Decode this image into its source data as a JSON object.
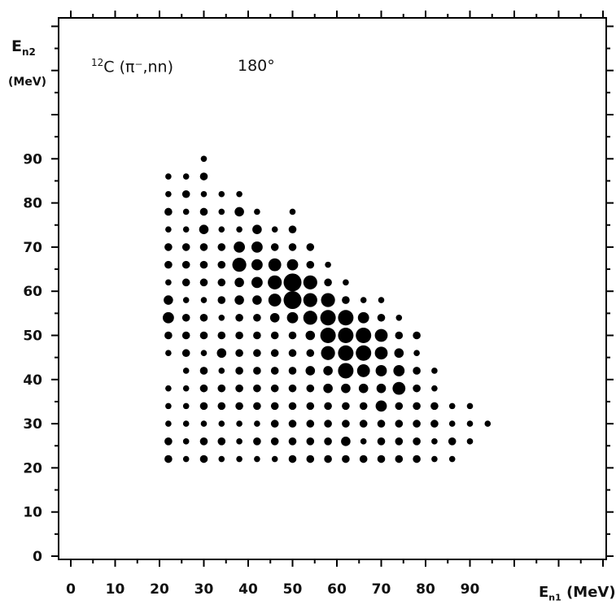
{
  "header": {
    "ylabel_symbol": "E",
    "ylabel_sub": "n2",
    "ylabel_unit": "(MeV)",
    "reaction_mass": "12",
    "reaction_text": "C (π⁻,nn)",
    "angle": "180°",
    "xlabel_symbol": "E",
    "xlabel_sub": "n1",
    "xlabel_unit": "(MeV)"
  },
  "chart_data": {
    "type": "scatter",
    "title": "12C (π⁻,nn) 180°",
    "xlabel": "En1 (MeV)",
    "ylabel": "En2 (MeV)",
    "xlim": [
      -2,
      120
    ],
    "ylim": [
      -2,
      120
    ],
    "xticks": [
      0,
      10,
      20,
      30,
      40,
      50,
      60,
      70,
      80,
      90
    ],
    "yticks": [
      0,
      10,
      20,
      30,
      40,
      50,
      60,
      70,
      80,
      90
    ],
    "grid": false,
    "marker_color": "#000000",
    "size_meaning": "dot area proportional to intensity (relative scale 1-8)",
    "points": [
      [
        30,
        90,
        1
      ],
      [
        22,
        86,
        1
      ],
      [
        26,
        86,
        1
      ],
      [
        30,
        86,
        2
      ],
      [
        22,
        82,
        1
      ],
      [
        26,
        82,
        2
      ],
      [
        30,
        82,
        1
      ],
      [
        34,
        82,
        1
      ],
      [
        38,
        82,
        1
      ],
      [
        22,
        78,
        2
      ],
      [
        26,
        78,
        1
      ],
      [
        30,
        78,
        2
      ],
      [
        34,
        78,
        1
      ],
      [
        38,
        78,
        3
      ],
      [
        42,
        78,
        1
      ],
      [
        50,
        78,
        1
      ],
      [
        22,
        74,
        1
      ],
      [
        26,
        74,
        1
      ],
      [
        30,
        74,
        3
      ],
      [
        34,
        74,
        1
      ],
      [
        38,
        74,
        1
      ],
      [
        42,
        74,
        3
      ],
      [
        46,
        74,
        1
      ],
      [
        50,
        74,
        2
      ],
      [
        22,
        70,
        2
      ],
      [
        26,
        70,
        2
      ],
      [
        30,
        70,
        2
      ],
      [
        34,
        70,
        2
      ],
      [
        38,
        70,
        4
      ],
      [
        42,
        70,
        4
      ],
      [
        46,
        70,
        2
      ],
      [
        50,
        70,
        2
      ],
      [
        54,
        70,
        2
      ],
      [
        22,
        66,
        2
      ],
      [
        26,
        66,
        2
      ],
      [
        30,
        66,
        2
      ],
      [
        34,
        66,
        2
      ],
      [
        38,
        66,
        6
      ],
      [
        42,
        66,
        4
      ],
      [
        46,
        66,
        5
      ],
      [
        50,
        66,
        4
      ],
      [
        54,
        66,
        2
      ],
      [
        58,
        66,
        1
      ],
      [
        22,
        62,
        1
      ],
      [
        26,
        62,
        2
      ],
      [
        30,
        62,
        2
      ],
      [
        34,
        62,
        2
      ],
      [
        38,
        62,
        3
      ],
      [
        42,
        62,
        4
      ],
      [
        46,
        62,
        6
      ],
      [
        50,
        62,
        8
      ],
      [
        54,
        62,
        6
      ],
      [
        58,
        62,
        2
      ],
      [
        62,
        62,
        1
      ],
      [
        22,
        58,
        3
      ],
      [
        26,
        58,
        1
      ],
      [
        30,
        58,
        1
      ],
      [
        34,
        58,
        2
      ],
      [
        38,
        58,
        3
      ],
      [
        42,
        58,
        3
      ],
      [
        46,
        58,
        5
      ],
      [
        50,
        58,
        8
      ],
      [
        54,
        58,
        6
      ],
      [
        58,
        58,
        6
      ],
      [
        62,
        58,
        2
      ],
      [
        66,
        58,
        1
      ],
      [
        70,
        58,
        1
      ],
      [
        22,
        54,
        4
      ],
      [
        26,
        54,
        2
      ],
      [
        30,
        54,
        2
      ],
      [
        34,
        54,
        1
      ],
      [
        38,
        54,
        2
      ],
      [
        42,
        54,
        2
      ],
      [
        46,
        54,
        3
      ],
      [
        50,
        54,
        4
      ],
      [
        54,
        54,
        6
      ],
      [
        58,
        54,
        7
      ],
      [
        62,
        54,
        7
      ],
      [
        66,
        54,
        4
      ],
      [
        70,
        54,
        2
      ],
      [
        74,
        54,
        1
      ],
      [
        22,
        50,
        2
      ],
      [
        26,
        50,
        2
      ],
      [
        30,
        50,
        2
      ],
      [
        34,
        50,
        2
      ],
      [
        38,
        50,
        2
      ],
      [
        42,
        50,
        2
      ],
      [
        46,
        50,
        2
      ],
      [
        50,
        50,
        2
      ],
      [
        54,
        50,
        3
      ],
      [
        58,
        50,
        7
      ],
      [
        62,
        50,
        7
      ],
      [
        66,
        50,
        7
      ],
      [
        70,
        50,
        5
      ],
      [
        74,
        50,
        2
      ],
      [
        78,
        50,
        2
      ],
      [
        22,
        46,
        1
      ],
      [
        26,
        46,
        2
      ],
      [
        30,
        46,
        1
      ],
      [
        34,
        46,
        3
      ],
      [
        38,
        46,
        2
      ],
      [
        42,
        46,
        2
      ],
      [
        46,
        46,
        2
      ],
      [
        50,
        46,
        2
      ],
      [
        54,
        46,
        2
      ],
      [
        58,
        46,
        6
      ],
      [
        62,
        46,
        7
      ],
      [
        66,
        46,
        7
      ],
      [
        70,
        46,
        5
      ],
      [
        74,
        46,
        3
      ],
      [
        78,
        46,
        1
      ],
      [
        26,
        42,
        1
      ],
      [
        30,
        42,
        2
      ],
      [
        34,
        42,
        1
      ],
      [
        38,
        42,
        2
      ],
      [
        42,
        42,
        2
      ],
      [
        46,
        42,
        2
      ],
      [
        50,
        42,
        2
      ],
      [
        54,
        42,
        3
      ],
      [
        58,
        42,
        3
      ],
      [
        62,
        42,
        7
      ],
      [
        66,
        42,
        5
      ],
      [
        70,
        42,
        4
      ],
      [
        74,
        42,
        4
      ],
      [
        78,
        42,
        2
      ],
      [
        82,
        42,
        1
      ],
      [
        22,
        38,
        1
      ],
      [
        26,
        38,
        1
      ],
      [
        30,
        38,
        2
      ],
      [
        34,
        38,
        2
      ],
      [
        38,
        38,
        2
      ],
      [
        42,
        38,
        2
      ],
      [
        46,
        38,
        2
      ],
      [
        50,
        38,
        2
      ],
      [
        54,
        38,
        2
      ],
      [
        58,
        38,
        3
      ],
      [
        62,
        38,
        3
      ],
      [
        66,
        38,
        3
      ],
      [
        70,
        38,
        3
      ],
      [
        74,
        38,
        5
      ],
      [
        78,
        38,
        2
      ],
      [
        82,
        38,
        1
      ],
      [
        22,
        34,
        1
      ],
      [
        26,
        34,
        1
      ],
      [
        30,
        34,
        2
      ],
      [
        34,
        34,
        2
      ],
      [
        38,
        34,
        2
      ],
      [
        42,
        34,
        2
      ],
      [
        46,
        34,
        2
      ],
      [
        50,
        34,
        2
      ],
      [
        54,
        34,
        2
      ],
      [
        58,
        34,
        2
      ],
      [
        62,
        34,
        2
      ],
      [
        66,
        34,
        2
      ],
      [
        70,
        34,
        4
      ],
      [
        74,
        34,
        2
      ],
      [
        78,
        34,
        2
      ],
      [
        82,
        34,
        2
      ],
      [
        86,
        34,
        1
      ],
      [
        90,
        34,
        1
      ],
      [
        22,
        30,
        1
      ],
      [
        26,
        30,
        1
      ],
      [
        30,
        30,
        1
      ],
      [
        34,
        30,
        1
      ],
      [
        38,
        30,
        1
      ],
      [
        42,
        30,
        1
      ],
      [
        46,
        30,
        2
      ],
      [
        50,
        30,
        2
      ],
      [
        54,
        30,
        2
      ],
      [
        58,
        30,
        2
      ],
      [
        62,
        30,
        2
      ],
      [
        66,
        30,
        2
      ],
      [
        70,
        30,
        2
      ],
      [
        74,
        30,
        2
      ],
      [
        78,
        30,
        2
      ],
      [
        82,
        30,
        2
      ],
      [
        86,
        30,
        1
      ],
      [
        90,
        30,
        1
      ],
      [
        94,
        30,
        1
      ],
      [
        22,
        26,
        2
      ],
      [
        26,
        26,
        1
      ],
      [
        30,
        26,
        2
      ],
      [
        34,
        26,
        2
      ],
      [
        38,
        26,
        1
      ],
      [
        42,
        26,
        2
      ],
      [
        46,
        26,
        2
      ],
      [
        50,
        26,
        2
      ],
      [
        54,
        26,
        2
      ],
      [
        58,
        26,
        2
      ],
      [
        62,
        26,
        3
      ],
      [
        66,
        26,
        1
      ],
      [
        70,
        26,
        2
      ],
      [
        74,
        26,
        2
      ],
      [
        78,
        26,
        2
      ],
      [
        82,
        26,
        1
      ],
      [
        86,
        26,
        2
      ],
      [
        90,
        26,
        1
      ],
      [
        22,
        22,
        2
      ],
      [
        26,
        22,
        1
      ],
      [
        30,
        22,
        2
      ],
      [
        34,
        22,
        1
      ],
      [
        38,
        22,
        1
      ],
      [
        42,
        22,
        1
      ],
      [
        46,
        22,
        1
      ],
      [
        50,
        22,
        2
      ],
      [
        54,
        22,
        2
      ],
      [
        58,
        22,
        2
      ],
      [
        62,
        22,
        2
      ],
      [
        66,
        22,
        2
      ],
      [
        70,
        22,
        2
      ],
      [
        74,
        22,
        2
      ],
      [
        78,
        22,
        2
      ],
      [
        82,
        22,
        1
      ],
      [
        86,
        22,
        1
      ]
    ]
  }
}
